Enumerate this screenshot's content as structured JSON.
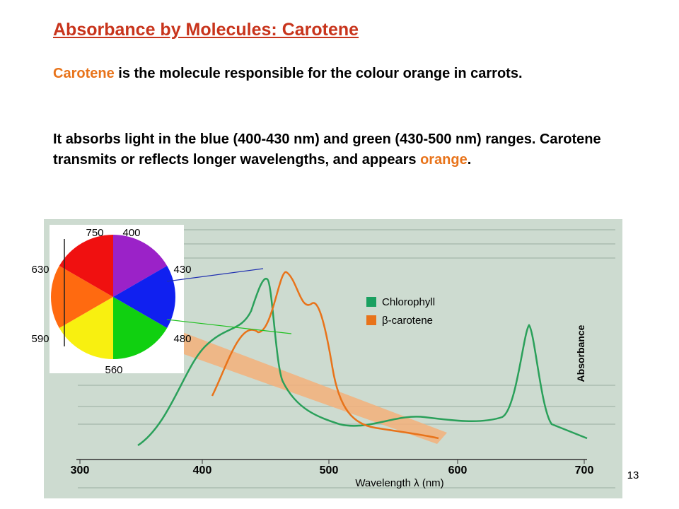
{
  "title": "Absorbance by Molecules: Carotene",
  "paragraphs": [
    [
      "Carotene",
      " is the molecule responsible for the colour orange in carrots."
    ],
    [
      "It absorbs light in the blue (400-430 nm) and green (430-500 nm) ranges.  Carotene transmits or reflects longer wavelengths, and appears ",
      "orange",
      "."
    ]
  ],
  "color_wheel": {
    "labels": [
      "750",
      "400",
      "430",
      "480",
      "560",
      "590",
      "630"
    ]
  },
  "spectrum": {
    "x_ticks": [
      "300",
      "400",
      "500",
      "600",
      "700"
    ],
    "x_label": "Wavelength λ (nm)",
    "y_label": "Absorbance",
    "legend": [
      "Chlorophyll",
      "β-carotene"
    ]
  },
  "page_number": "13"
}
